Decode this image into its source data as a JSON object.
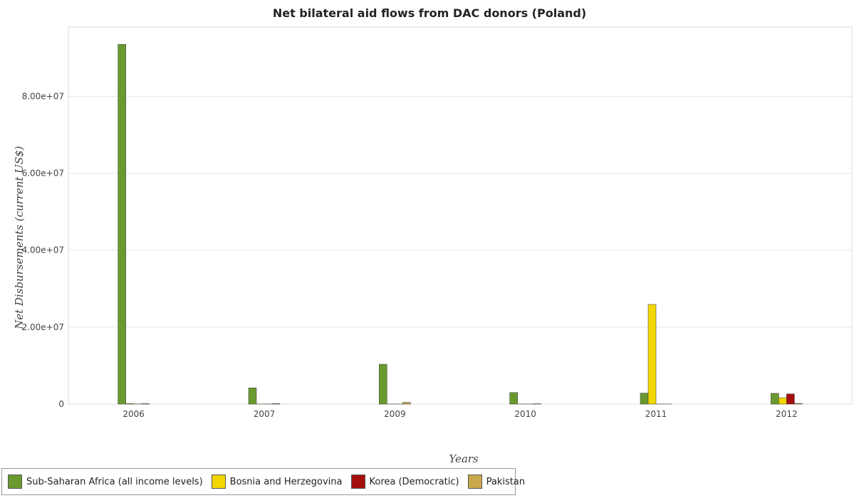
{
  "chart_data": {
    "type": "bar",
    "title": "Net bilateral aid flows from DAC donors (Poland)",
    "xlabel": "Years",
    "ylabel": "Net Disbursements (current US$)",
    "categories": [
      "2006",
      "2007",
      "2009",
      "2010",
      "2011",
      "2012"
    ],
    "ylim": [
      0,
      98000000
    ],
    "yticks": [
      0,
      20000000,
      40000000,
      60000000,
      80000000
    ],
    "ytick_labels": [
      "0",
      "2.00e+07",
      "4.00e+07",
      "6.00e+07",
      "8.00e+07"
    ],
    "grid": true,
    "legend_position": "bottom-left",
    "series": [
      {
        "name": "Sub-Saharan Africa (all income levels)",
        "color": "#6a9a2f",
        "values": [
          93500000,
          4200000,
          10350000,
          3000000,
          2850000,
          2800000
        ]
      },
      {
        "name": "Bosnia and Herzegovina",
        "color": "#f2d600",
        "values": [
          150000,
          20000,
          20000,
          20000,
          25900000,
          1650000
        ]
      },
      {
        "name": "Korea (Democratic)",
        "color": "#a50f0f",
        "values": [
          30000,
          20000,
          20000,
          20000,
          20000,
          2650000
        ]
      },
      {
        "name": "Pakistan",
        "color": "#c9a84c",
        "values": [
          120000,
          130000,
          450000,
          80000,
          20000,
          180000
        ]
      }
    ]
  }
}
